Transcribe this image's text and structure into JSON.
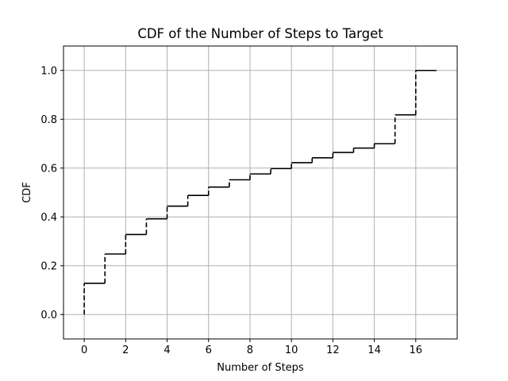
{
  "chart_data": {
    "type": "line",
    "title": "CDF of the Number of Steps to Target",
    "xlabel": "Number of Steps",
    "ylabel": "CDF",
    "xlim": [
      -1,
      18
    ],
    "ylim": [
      -0.1,
      1.1
    ],
    "xticks": [
      0,
      2,
      4,
      6,
      8,
      10,
      12,
      14,
      16
    ],
    "yticks": [
      0.0,
      0.2,
      0.4,
      0.6,
      0.8,
      1.0
    ],
    "xtick_labels": [
      "0",
      "2",
      "4",
      "6",
      "8",
      "10",
      "12",
      "14",
      "16"
    ],
    "ytick_labels": [
      "0.0",
      "0.2",
      "0.4",
      "0.6",
      "0.8",
      "1.0"
    ],
    "grid": true,
    "step_line_color": "#000000",
    "grid_color": "#b0b0b0",
    "series": [
      {
        "x": [
          0,
          1,
          2,
          3,
          4,
          5,
          6,
          7,
          8,
          9,
          10,
          11,
          12,
          13,
          14,
          15,
          16
        ],
        "values": [
          0.128,
          0.248,
          0.328,
          0.392,
          0.444,
          0.488,
          0.522,
          0.552,
          0.576,
          0.598,
          0.622,
          0.642,
          0.664,
          0.682,
          0.7,
          0.818,
          1.0
        ],
        "x_end": 17,
        "start_value": 0.0
      }
    ]
  }
}
